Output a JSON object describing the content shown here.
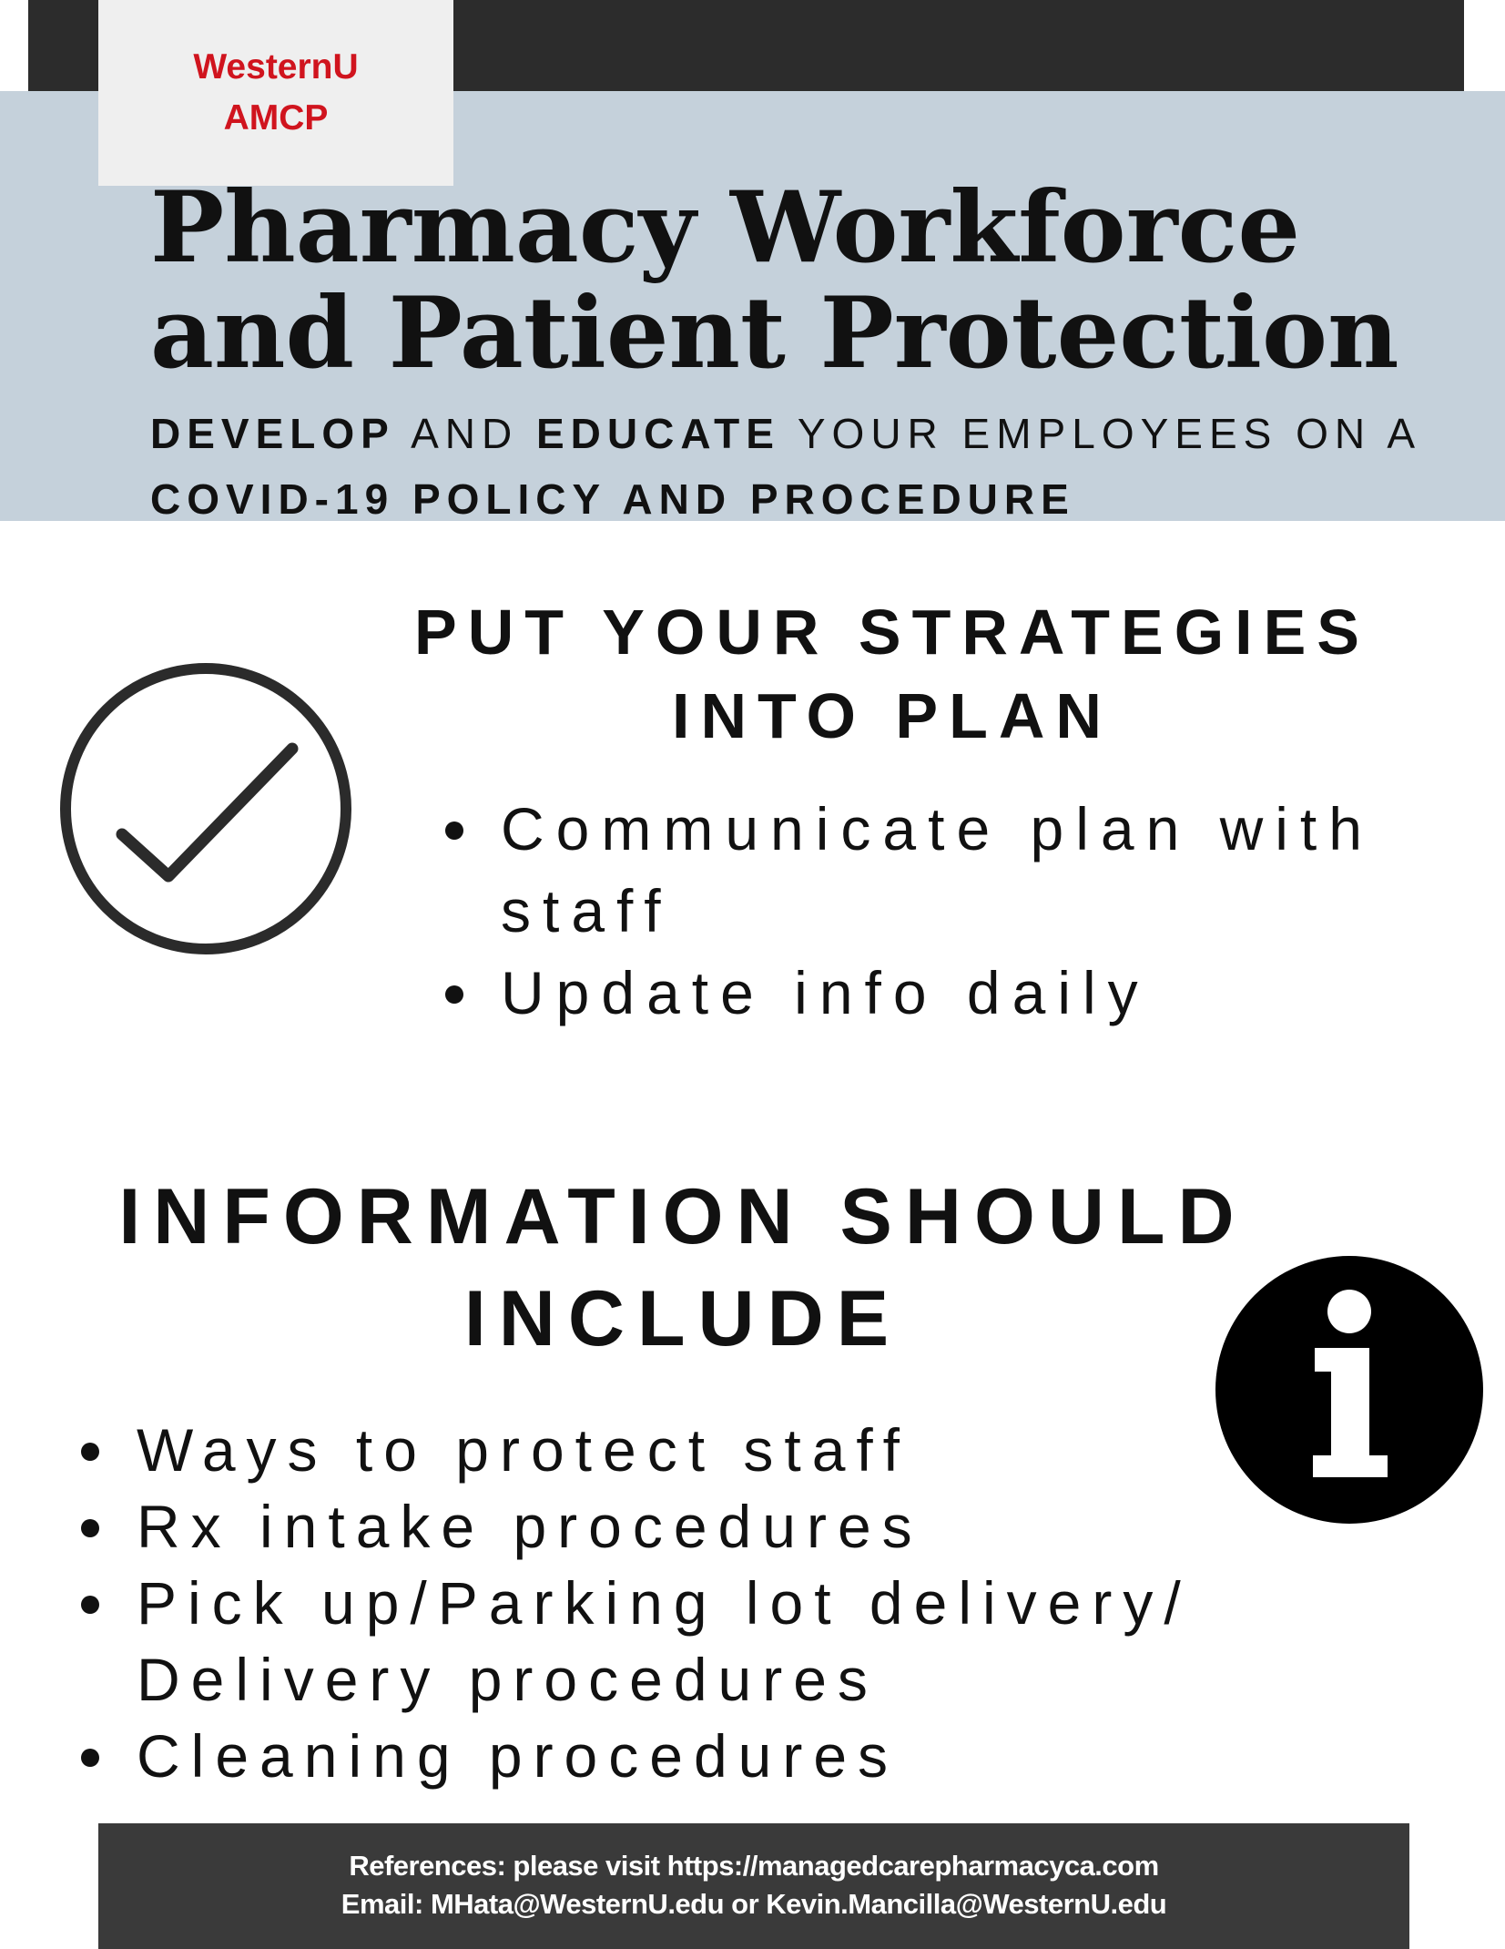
{
  "logo": {
    "line1": "WesternU",
    "line2": "AMCP"
  },
  "header": {
    "title_line1": "Pharmacy Workforce",
    "title_line2": "and Patient Protection",
    "subtitle": {
      "develop": "DEVELOP",
      "and": "AND",
      "educate": "EDUCATE",
      "rest": "YOUR EMPLOYEES ON A",
      "line2": "COVID-19 POLICY AND PROCEDURE"
    }
  },
  "strategies": {
    "heading_line1": "PUT YOUR STRATEGIES",
    "heading_line2": "INTO PLAN",
    "icon": "checkmark-circle-icon",
    "items": [
      "Communicate plan with staff",
      "Update info daily"
    ]
  },
  "information": {
    "heading_line1": "INFORMATION SHOULD",
    "heading_line2": "INCLUDE",
    "icon": "info-icon",
    "items": [
      "Ways to protect staff",
      "Rx intake procedures",
      "Pick up/Parking lot delivery/ Delivery procedures",
      "Cleaning procedures"
    ]
  },
  "footer": {
    "references": "References: please visit https://managedcarepharmacyca.com",
    "email": "Email: MHata@WesternU.edu or Kevin.Mancilla@WesternU.edu"
  },
  "colors": {
    "top_bar": "#2c2c2c",
    "header_band": "#c5d1db",
    "logo_box": "#efefef",
    "logo_text": "#d0141e",
    "footer": "#3a3a3a"
  }
}
